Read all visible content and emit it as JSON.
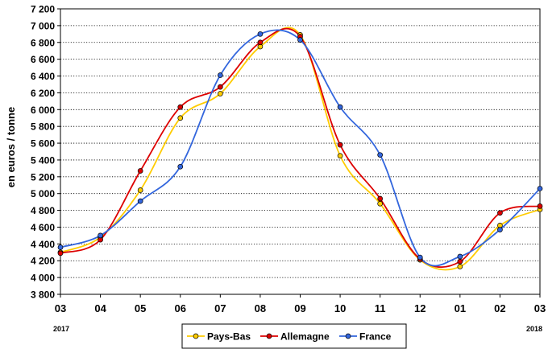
{
  "chart_data": {
    "type": "line",
    "ylabel": "en euros / tonne",
    "xlabel": "",
    "title": "",
    "categories": [
      "03",
      "04",
      "05",
      "06",
      "07",
      "08",
      "09",
      "10",
      "11",
      "12",
      "01",
      "02",
      "03"
    ],
    "year_labels": {
      "start": "2017",
      "end": "2018"
    },
    "ylim": [
      3800,
      7200
    ],
    "yticks": [
      3800,
      4000,
      4200,
      4400,
      4600,
      4800,
      5000,
      5200,
      5400,
      5600,
      5800,
      6000,
      6200,
      6400,
      6600,
      6800,
      7000,
      7200
    ],
    "ytick_labels": [
      "3 800",
      "4 000",
      "4 200",
      "4 400",
      "4 600",
      "4 800",
      "5 000",
      "5 200",
      "5 400",
      "5 600",
      "5 800",
      "6 000",
      "6 200",
      "6 400",
      "6 600",
      "6 800",
      "7 000",
      "7 200"
    ],
    "grid": "horizontal dotted",
    "legend_position": "bottom-center",
    "series": [
      {
        "name": "Pays-Bas",
        "color": "#FFCC00",
        "marker_color": "#FFCC00",
        "values": [
          4300,
          4480,
          5040,
          5900,
          6190,
          6750,
          6890,
          5450,
          4880,
          4210,
          4130,
          4620,
          4810
        ]
      },
      {
        "name": "Allemagne",
        "color": "#DD0000",
        "marker_color": "#DD0000",
        "values": [
          4290,
          4450,
          5270,
          6030,
          6270,
          6800,
          6870,
          5580,
          4940,
          4220,
          4190,
          4770,
          4850
        ]
      },
      {
        "name": "France",
        "color": "#3366DD",
        "marker_color": "#3366DD",
        "values": [
          4360,
          4500,
          4910,
          5320,
          6410,
          6900,
          6830,
          6030,
          5460,
          4240,
          4250,
          4570,
          5060
        ]
      }
    ]
  }
}
